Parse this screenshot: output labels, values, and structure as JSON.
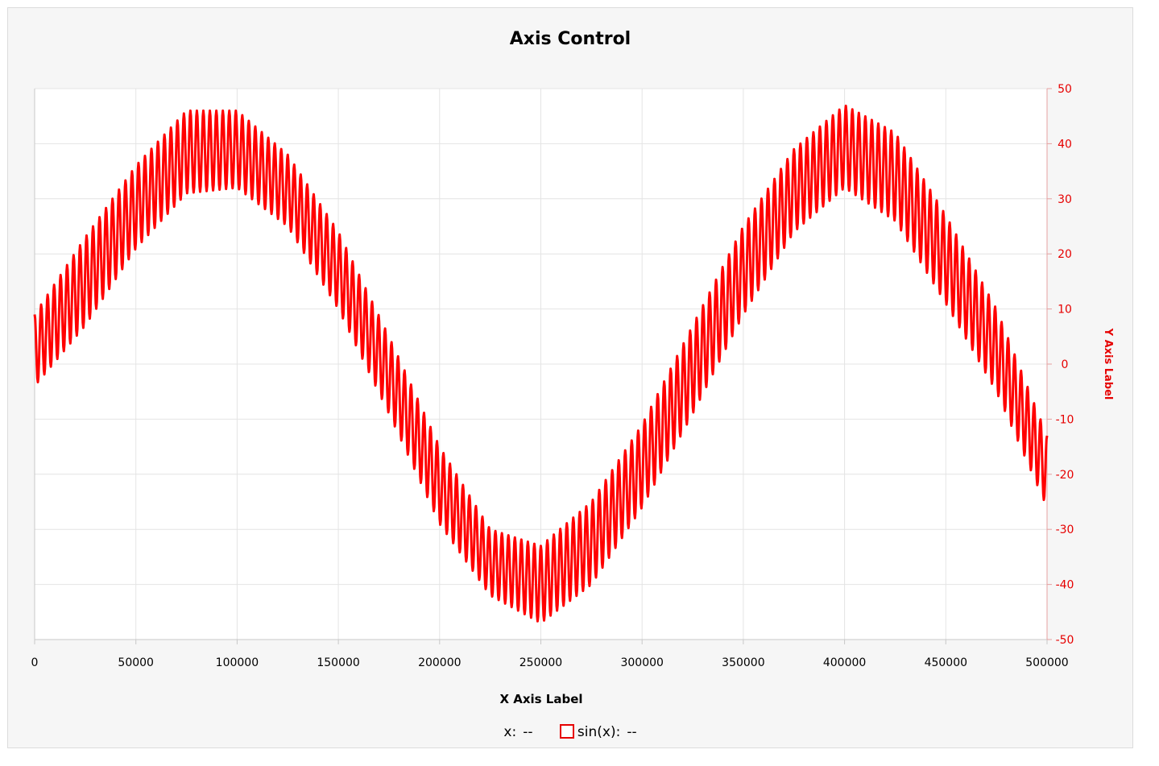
{
  "chart_data": {
    "type": "line",
    "title": "Axis Control",
    "xlabel": "X Axis Label",
    "ylabel": "Y Axis Label",
    "xlim": [
      0,
      500000
    ],
    "ylim": [
      -50,
      50
    ],
    "xticks": [
      "0",
      "50000",
      "100000",
      "150000",
      "200000",
      "250000",
      "300000",
      "350000",
      "400000",
      "450000",
      "500000"
    ],
    "yticks": [
      "50",
      "40",
      "30",
      "20",
      "10",
      "0",
      "-10",
      "-20",
      "-30",
      "-40",
      "-50"
    ],
    "grid": true,
    "y_axis_side": "right",
    "series": [
      {
        "name": "sin(x)",
        "color": "#ff0000",
        "x": [
          0,
          25000,
          50000,
          75000,
          100000,
          125000,
          150000,
          175000,
          200000,
          225000,
          250000,
          275000,
          300000,
          325000,
          350000,
          375000,
          400000,
          425000,
          450000,
          475000,
          500000
        ],
        "y": [
          0,
          15,
          29,
          38,
          39,
          31,
          16,
          -2,
          -22,
          -35,
          -40,
          -32,
          -19,
          -2,
          16,
          31,
          39,
          34,
          19,
          2,
          -18
        ],
        "peak_envelope": [
          9,
          23,
          36,
          46,
          46,
          38,
          24,
          5,
          -15,
          -30,
          -33,
          -25,
          -11,
          7,
          25,
          39,
          47,
          42,
          27,
          10,
          -13
        ],
        "trough_envelope": [
          -4,
          7,
          21,
          31,
          32,
          25,
          10,
          -9,
          -29,
          -42,
          -47,
          -40,
          -26,
          -9,
          9,
          24,
          32,
          26,
          11,
          -5,
          -26
        ]
      }
    ]
  },
  "legend": {
    "x_label": "x:",
    "x_value": "--",
    "series_label": "sin(x):",
    "series_value": "--"
  }
}
